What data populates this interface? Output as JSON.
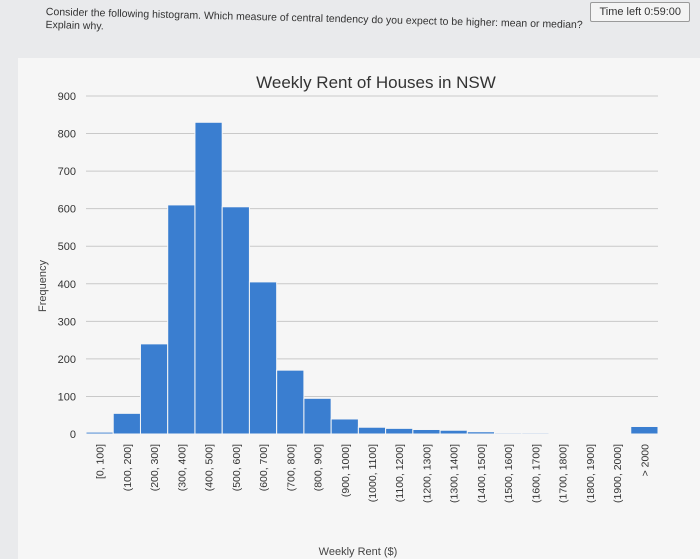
{
  "timer": {
    "label": "Time left 0:59:00"
  },
  "question": {
    "line1": "Consider the following histogram. Which measure of central tendency do you expect to be higher: mean or median?",
    "line2": "Explain why."
  },
  "chart_data": {
    "type": "bar",
    "title": "Weekly Rent of Houses in NSW",
    "xlabel": "Weekly Rent ($)",
    "ylabel": "Frequency",
    "ylim": [
      0,
      900
    ],
    "yticks": [
      0,
      100,
      200,
      300,
      400,
      500,
      600,
      700,
      800,
      900
    ],
    "grid": true,
    "categories": [
      "[0, 100]",
      "(100, 200]",
      "(200, 300]",
      "(300, 400]",
      "(400, 500]",
      "(500, 600]",
      "(600, 700]",
      "(700, 800]",
      "(800, 900]",
      "(900, 1000]",
      "(1000, 1100]",
      "(1100, 1200]",
      "(1200, 1300]",
      "(1300, 1400]",
      "(1400, 1500]",
      "(1500, 1600]",
      "(1600, 1700]",
      "(1700, 1800]",
      "(1800, 1900]",
      "(1900, 2000]",
      "> 2000"
    ],
    "values": [
      5,
      55,
      240,
      610,
      830,
      605,
      405,
      170,
      95,
      40,
      18,
      15,
      12,
      10,
      6,
      3,
      3,
      2,
      2,
      2,
      20
    ],
    "bar_color": "#3a7ed0"
  }
}
